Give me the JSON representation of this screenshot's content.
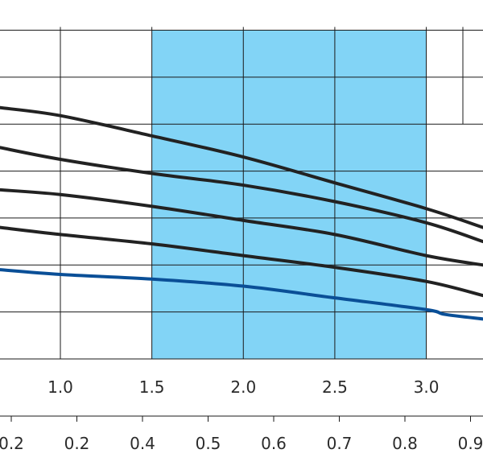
{
  "chart_data": {
    "type": "line",
    "title": "",
    "xlabel": "",
    "ylabel": "",
    "grid": true,
    "x_tick_labels": [
      "1.0",
      "1.5",
      "2.0",
      "2.5",
      "3.0"
    ],
    "x_ticks": [
      1.0,
      1.5,
      2.0,
      2.5,
      3.0
    ],
    "secondary_axis": {
      "position": "bottom",
      "tick_labels": [
        "0.2",
        "0.2",
        "0.4",
        "0.5",
        "0.6",
        "0.7",
        "0.8",
        "0.9"
      ]
    },
    "highlight_range": {
      "x": [
        1.5,
        3.0
      ],
      "color": "#82d4f6"
    },
    "xlim": [
      0.67,
      3.31
    ],
    "ylim": [
      0,
      7.3
    ],
    "y_gridlines": [
      1,
      2,
      3,
      4,
      5,
      6,
      7
    ],
    "extra_grid_segment": {
      "x": 3.2,
      "y_range": [
        5,
        7
      ]
    },
    "series": [
      {
        "color": "#222222",
        "x": [
          0.67,
          1.0,
          1.5,
          2.0,
          2.5,
          3.0,
          3.31
        ],
        "y": [
          5.35,
          5.18,
          4.75,
          4.3,
          3.75,
          3.2,
          2.8
        ]
      },
      {
        "color": "#222222",
        "x": [
          0.67,
          1.0,
          1.5,
          2.0,
          2.5,
          3.0,
          3.31
        ],
        "y": [
          4.5,
          4.25,
          3.95,
          3.7,
          3.35,
          2.9,
          2.5
        ]
      },
      {
        "color": "#222222",
        "x": [
          0.67,
          1.0,
          1.5,
          2.0,
          2.5,
          3.0,
          3.31
        ],
        "y": [
          3.6,
          3.5,
          3.25,
          2.95,
          2.65,
          2.2,
          2.0
        ]
      },
      {
        "color": "#222222",
        "x": [
          0.67,
          1.0,
          1.5,
          2.0,
          2.5,
          3.0,
          3.31
        ],
        "y": [
          2.8,
          2.65,
          2.45,
          2.2,
          1.95,
          1.65,
          1.35
        ]
      },
      {
        "color": "#0a4f97",
        "x": [
          0.67,
          1.0,
          1.5,
          2.0,
          2.5,
          3.0,
          3.1,
          3.31
        ],
        "y": [
          1.9,
          1.8,
          1.7,
          1.55,
          1.3,
          1.05,
          0.95,
          0.85
        ]
      }
    ]
  }
}
